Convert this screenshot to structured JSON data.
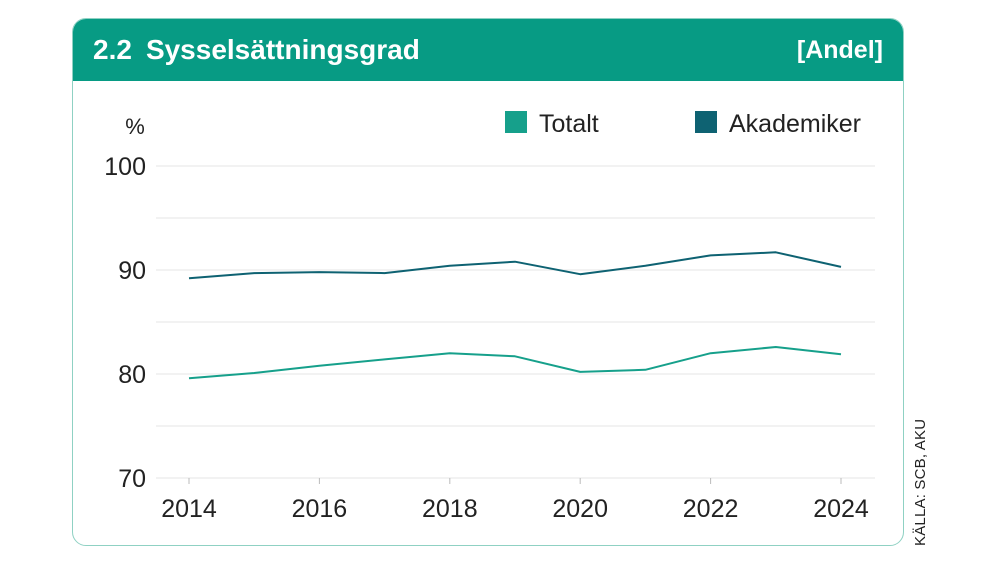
{
  "header": {
    "chapter": "2.2",
    "title": "Sysselsättningsgrad",
    "unit_tag": "[Andel]"
  },
  "colors": {
    "header_bg": "#079b84",
    "totalt": "#16a08b",
    "akademiker": "#0e6272",
    "grid": "#e4e4e4",
    "text": "#222222"
  },
  "source": "KÄLLA: SCB, AKU",
  "chart_data": {
    "type": "line",
    "ylabel": "%",
    "ylim": [
      70,
      100
    ],
    "yticks": [
      70,
      80,
      90,
      100
    ],
    "xticks": [
      2014,
      2016,
      2018,
      2020,
      2022,
      2024
    ],
    "x": [
      2014,
      2015,
      2016,
      2017,
      2018,
      2019,
      2020,
      2021,
      2022,
      2023,
      2024
    ],
    "grid": true,
    "legend_position": "top-right",
    "series": [
      {
        "name": "Totalt",
        "color": "#16a08b",
        "values": [
          79.6,
          80.1,
          80.8,
          81.4,
          82.0,
          81.7,
          80.2,
          80.4,
          82.0,
          82.6,
          81.9
        ]
      },
      {
        "name": "Akademiker",
        "color": "#0e6272",
        "values": [
          89.2,
          89.7,
          89.8,
          89.7,
          90.4,
          90.8,
          89.6,
          90.4,
          91.4,
          91.7,
          90.3
        ]
      }
    ]
  }
}
